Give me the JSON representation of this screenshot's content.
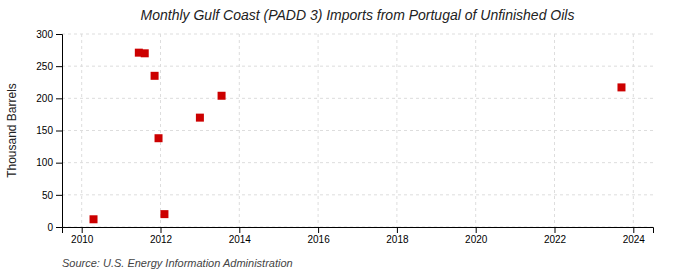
{
  "chart_data": {
    "type": "scatter",
    "title": "Monthly Gulf Coast (PADD 3) Imports from Portugal of Unfinished Oils",
    "ylabel": "Thousand Barrels",
    "annotation": "Source: U.S. Energy Information Administration",
    "x": [
      2010.3,
      2011.45,
      2011.6,
      2011.85,
      2011.95,
      2012.1,
      2013.0,
      2013.55,
      2023.7
    ],
    "values": [
      12,
      271,
      270,
      235,
      138,
      20,
      170,
      204,
      217
    ],
    "color": "#cc0000",
    "marker": "square",
    "xlim": [
      2009.5,
      2024.5
    ],
    "ylim": [
      0,
      300
    ],
    "xticks": [
      2010,
      2012,
      2014,
      2016,
      2018,
      2020,
      2022,
      2024
    ],
    "yticks": [
      0,
      50,
      100,
      150,
      200,
      250,
      300
    ],
    "grid": true
  }
}
